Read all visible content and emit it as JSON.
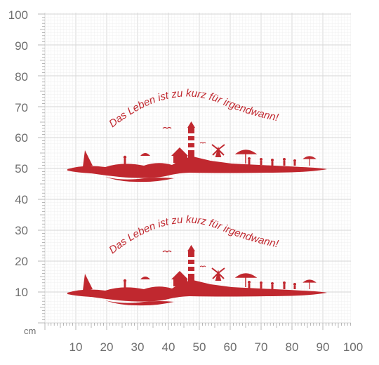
{
  "ruler": {
    "unit_label": "cm",
    "x_labels": [
      "10",
      "20",
      "30",
      "40",
      "50",
      "60",
      "70",
      "80",
      "90",
      "100"
    ],
    "y_labels": [
      "100",
      "90",
      "80",
      "70",
      "60",
      "50",
      "40",
      "30",
      "20",
      "10"
    ]
  },
  "decals": [
    {
      "phrase": "Das Leben ist zu kurz für irgendwann!"
    },
    {
      "phrase": "Das Leben ist zu kurz für irgendwann!"
    }
  ],
  "colors": {
    "decal": "#c0282f",
    "grid_minor": "#ececec",
    "grid_major": "#d6d6d6",
    "label": "#6e6e6e"
  }
}
